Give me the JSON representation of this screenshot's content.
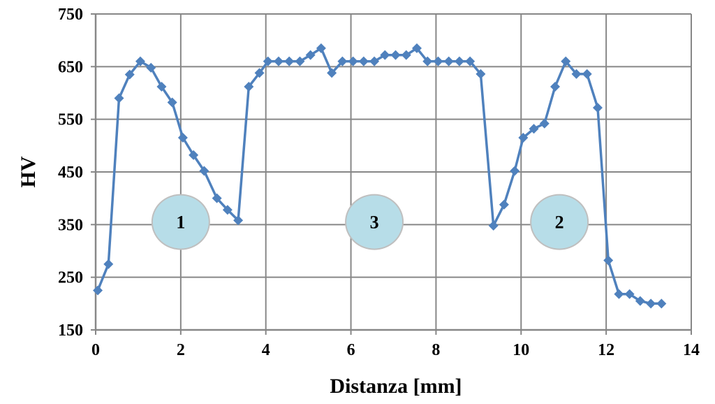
{
  "chart_data": {
    "type": "line",
    "xlabel": "Distanza [mm]",
    "ylabel": "HV",
    "xlim": [
      0,
      14
    ],
    "ylim": [
      150,
      750
    ],
    "x_ticks": [
      "0",
      "2",
      "4",
      "6",
      "8",
      "10",
      "12",
      "14"
    ],
    "y_ticks": [
      "150",
      "250",
      "350",
      "450",
      "550",
      "650",
      "750"
    ],
    "grid": true,
    "line_color": "#4f81bd",
    "series": [
      {
        "points": [
          [
            0.05,
            225
          ],
          [
            0.3,
            275
          ],
          [
            0.55,
            590
          ],
          [
            0.8,
            635
          ],
          [
            1.05,
            660
          ],
          [
            1.3,
            648
          ],
          [
            1.55,
            612
          ],
          [
            1.8,
            582
          ],
          [
            2.05,
            515
          ],
          [
            2.3,
            482
          ],
          [
            2.55,
            452
          ],
          [
            2.85,
            400
          ],
          [
            3.1,
            378
          ],
          [
            3.35,
            358
          ],
          [
            3.6,
            612
          ],
          [
            3.85,
            638
          ],
          [
            4.05,
            660
          ],
          [
            4.3,
            660
          ],
          [
            4.55,
            660
          ],
          [
            4.8,
            660
          ],
          [
            5.05,
            672
          ],
          [
            5.3,
            685
          ],
          [
            5.55,
            638
          ],
          [
            5.8,
            660
          ],
          [
            6.05,
            660
          ],
          [
            6.3,
            660
          ],
          [
            6.55,
            660
          ],
          [
            6.8,
            672
          ],
          [
            7.05,
            672
          ],
          [
            7.3,
            672
          ],
          [
            7.55,
            685
          ],
          [
            7.8,
            660
          ],
          [
            8.05,
            660
          ],
          [
            8.3,
            660
          ],
          [
            8.55,
            660
          ],
          [
            8.8,
            660
          ],
          [
            9.05,
            636
          ],
          [
            9.35,
            348
          ],
          [
            9.6,
            388
          ],
          [
            9.85,
            452
          ],
          [
            10.05,
            515
          ],
          [
            10.3,
            532
          ],
          [
            10.55,
            542
          ],
          [
            10.8,
            612
          ],
          [
            11.05,
            660
          ],
          [
            11.3,
            636
          ],
          [
            11.55,
            636
          ],
          [
            11.8,
            572
          ],
          [
            12.05,
            282
          ],
          [
            12.3,
            218
          ],
          [
            12.55,
            218
          ],
          [
            12.8,
            205
          ],
          [
            13.05,
            200
          ],
          [
            13.3,
            200
          ]
        ]
      }
    ],
    "zones": [
      {
        "label": "1",
        "x": 2.0,
        "y": 355
      },
      {
        "label": "3",
        "x": 6.55,
        "y": 355
      },
      {
        "label": "2",
        "x": 10.9,
        "y": 355
      }
    ],
    "zone_fill": "#b7dde8",
    "zone_stroke": "#bfbfbf"
  }
}
